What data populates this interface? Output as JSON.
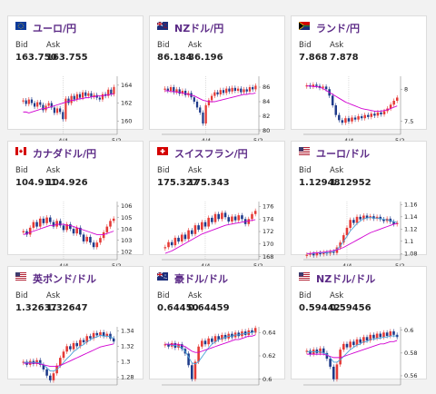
{
  "colors": {
    "title": "#5b2a86",
    "up": "#e53935",
    "down": "#1e3a8a",
    "ma1": "#d100d1",
    "ma2": "#4aa3d9"
  },
  "cards": [
    {
      "title": "ユーロ/円",
      "flag": "eu-flag-icon",
      "bid_label": "Bid",
      "ask_label": "Ask",
      "bid": "163.750",
      "ask": "163.755",
      "chart_data": {
        "type": "candlestick",
        "y_ticks": [
          "164",
          "162",
          "160"
        ],
        "x_ticks": [
          "4/4",
          "5/2"
        ],
        "ylim": [
          158.5,
          165
        ],
        "closes": [
          162.3,
          161.9,
          162.4,
          162.0,
          161.6,
          162.1,
          161.8,
          161.2,
          161.7,
          162.0,
          161.5,
          160.9,
          161.4,
          161.0,
          160.2,
          162.5,
          162.0,
          162.8,
          162.4,
          163.0,
          162.6,
          163.2,
          162.8,
          163.1,
          162.7,
          162.9,
          162.6,
          162.4,
          163.0,
          162.8,
          163.5,
          163.0,
          163.8
        ],
        "ma1": [
          161.0,
          161.0,
          160.9,
          161.0,
          161.1,
          161.2,
          161.3,
          161.4,
          161.4,
          161.5,
          161.6,
          161.7,
          161.8,
          161.9,
          162.0,
          162.1,
          162.2,
          162.3,
          162.3,
          162.4,
          162.5,
          162.5,
          162.6,
          162.6,
          162.7,
          162.7,
          162.8,
          162.8,
          162.8,
          162.9,
          162.9,
          163.0,
          163.0
        ],
        "ma2": []
      }
    },
    {
      "title": "NZドル/円",
      "flag": "nz-flag-icon",
      "bid_label": "Bid",
      "ask_label": "Ask",
      "bid": "86.184",
      "ask": "86.196",
      "chart_data": {
        "type": "candlestick",
        "y_ticks": [
          "86",
          "84",
          "82",
          "80"
        ],
        "x_ticks": [
          "4/4",
          "5/2"
        ],
        "ylim": [
          79.5,
          87.5
        ],
        "closes": [
          85.8,
          85.5,
          86.0,
          85.3,
          85.7,
          85.1,
          85.5,
          84.9,
          85.2,
          84.6,
          84.0,
          83.2,
          82.5,
          81.0,
          83.5,
          84.2,
          84.8,
          85.3,
          85.0,
          85.6,
          85.2,
          85.8,
          85.4,
          85.9,
          85.5,
          85.8,
          85.3,
          85.7,
          85.4,
          86.0,
          85.7,
          86.2
        ],
        "ma1": [
          85.5,
          85.5,
          85.4,
          85.4,
          85.3,
          85.3,
          85.2,
          85.1,
          85.0,
          84.9,
          84.8,
          84.6,
          84.4,
          84.2,
          84.1,
          84.0,
          84.0,
          84.0,
          84.1,
          84.2,
          84.3,
          84.4,
          84.5,
          84.6,
          84.7,
          84.8,
          84.9,
          85.0,
          85.0,
          85.1,
          85.1,
          85.2
        ],
        "ma2": []
      }
    },
    {
      "title": "ランド/円",
      "flag": "za-flag-icon",
      "bid_label": "Bid",
      "ask_label": "Ask",
      "bid": "7.868",
      "ask": "7.878",
      "chart_data": {
        "type": "candlestick",
        "y_ticks": [
          "8",
          "7.5"
        ],
        "x_ticks": [
          "4/4",
          "5/2"
        ],
        "ylim": [
          7.3,
          8.2
        ],
        "closes": [
          8.06,
          8.04,
          8.07,
          8.05,
          8.02,
          8.04,
          8.0,
          7.9,
          7.75,
          7.6,
          7.52,
          7.48,
          7.55,
          7.5,
          7.56,
          7.53,
          7.58,
          7.55,
          7.6,
          7.57,
          7.62,
          7.59,
          7.64,
          7.61,
          7.66,
          7.7,
          7.76,
          7.82,
          7.87
        ],
        "ma1": [
          8.05,
          8.05,
          8.04,
          8.04,
          8.03,
          8.01,
          7.98,
          7.95,
          7.92,
          7.89,
          7.86,
          7.83,
          7.8,
          7.78,
          7.76,
          7.74,
          7.72,
          7.7,
          7.69,
          7.68,
          7.67,
          7.66,
          7.66,
          7.66,
          7.67,
          7.68,
          7.7,
          7.72,
          7.74
        ],
        "ma2": []
      }
    },
    {
      "title": "カナダドル/円",
      "flag": "ca-flag-icon",
      "bid_label": "Bid",
      "ask_label": "Ask",
      "bid": "104.911",
      "ask": "104.926",
      "chart_data": {
        "type": "candlestick",
        "y_ticks": [
          "106",
          "105",
          "104",
          "103",
          "102"
        ],
        "x_ticks": [
          "4/4",
          "5/2"
        ],
        "ylim": [
          101.3,
          106.4
        ],
        "closes": [
          103.8,
          103.5,
          104.1,
          104.6,
          104.2,
          104.9,
          104.5,
          105.0,
          104.6,
          104.2,
          104.7,
          104.3,
          103.9,
          104.4,
          104.0,
          103.6,
          104.1,
          103.5,
          102.9,
          103.3,
          102.8,
          102.4,
          102.8,
          103.2,
          103.7,
          104.2,
          104.7,
          104.9
        ],
        "ma1": [
          103.5,
          103.6,
          103.7,
          103.8,
          103.9,
          104.0,
          104.1,
          104.2,
          104.3,
          104.3,
          104.4,
          104.4,
          104.4,
          104.3,
          104.3,
          104.2,
          104.1,
          104.0,
          103.9,
          103.8,
          103.7,
          103.6,
          103.5,
          103.5,
          103.5,
          103.6,
          103.7,
          103.8
        ],
        "ma2": []
      }
    },
    {
      "title": "スイスフラン/円",
      "flag": "ch-flag-icon",
      "bid_label": "Bid",
      "ask_label": "Ask",
      "bid": "175.327",
      "ask": "175.343",
      "chart_data": {
        "type": "candlestick",
        "y_ticks": [
          "176",
          "174",
          "172",
          "170",
          "168"
        ],
        "x_ticks": [
          "4/4",
          "5/2"
        ],
        "ylim": [
          167.5,
          176.8
        ],
        "closes": [
          169.5,
          170.3,
          169.8,
          171.0,
          170.4,
          171.5,
          170.8,
          172.2,
          171.6,
          173.0,
          172.3,
          173.5,
          172.8,
          174.2,
          173.5,
          174.8,
          174.0,
          175.0,
          174.3,
          173.6,
          174.4,
          173.8,
          174.6,
          174.0,
          173.2,
          174.0,
          174.8,
          175.3
        ],
        "ma1": [
          168.5,
          168.7,
          168.9,
          169.2,
          169.5,
          169.8,
          170.1,
          170.4,
          170.7,
          171.0,
          171.3,
          171.6,
          171.8,
          172.0,
          172.2,
          172.4,
          172.6,
          172.8,
          173.0,
          173.1,
          173.2,
          173.3,
          173.4,
          173.5,
          173.6,
          173.7,
          173.8,
          173.9
        ],
        "ma2": []
      }
    },
    {
      "title": "ユーロ/ドル",
      "flag": "us-flag-icon",
      "bid_label": "Bid",
      "ask_label": "Ask",
      "bid": "1.12948",
      "ask": "1.12952",
      "chart_data": {
        "type": "candlestick",
        "y_ticks": [
          "1.16",
          "1.14",
          "1.12",
          "1.1",
          "1.08"
        ],
        "x_ticks": [
          "4/4",
          "5/2"
        ],
        "ylim": [
          1.07,
          1.165
        ],
        "closes": [
          1.078,
          1.08,
          1.077,
          1.081,
          1.079,
          1.082,
          1.08,
          1.083,
          1.081,
          1.09,
          1.098,
          1.11,
          1.122,
          1.135,
          1.13,
          1.14,
          1.136,
          1.142,
          1.138,
          1.141,
          1.137,
          1.14,
          1.136,
          1.133,
          1.137,
          1.132,
          1.128,
          1.13
        ],
        "ma1": [
          1.08,
          1.08,
          1.081,
          1.081,
          1.082,
          1.082,
          1.083,
          1.084,
          1.085,
          1.086,
          1.088,
          1.09,
          1.093,
          1.096,
          1.099,
          1.102,
          1.105,
          1.108,
          1.111,
          1.114,
          1.116,
          1.118,
          1.12,
          1.122,
          1.124,
          1.126,
          1.128,
          1.129
        ],
        "ma2": [
          1.08,
          1.08,
          1.08,
          1.081,
          1.081,
          1.081,
          1.081,
          1.082,
          1.083,
          1.087,
          1.092,
          1.1,
          1.108,
          1.117,
          1.123,
          1.129,
          1.133,
          1.137,
          1.138,
          1.139,
          1.138,
          1.138,
          1.137,
          1.136,
          1.135,
          1.134,
          1.132,
          1.131
        ]
      }
    },
    {
      "title": "英ポンド/ドル",
      "flag": "us-flag-icon",
      "bid_label": "Bid",
      "ask_label": "Ask",
      "bid": "1.32637",
      "ask": "1.32647",
      "chart_data": {
        "type": "candlestick",
        "y_ticks": [
          "1.34",
          "1.32",
          "1.3",
          "1.28"
        ],
        "x_ticks": [],
        "ylim": [
          1.27,
          1.345
        ],
        "closes": [
          1.3,
          1.296,
          1.301,
          1.297,
          1.302,
          1.296,
          1.29,
          1.282,
          1.276,
          1.285,
          1.295,
          1.305,
          1.313,
          1.32,
          1.316,
          1.324,
          1.32,
          1.328,
          1.325,
          1.333,
          1.33,
          1.337,
          1.334,
          1.338,
          1.333,
          1.336,
          1.33,
          1.326
        ],
        "ma1": [
          1.298,
          1.298,
          1.298,
          1.298,
          1.298,
          1.297,
          1.296,
          1.295,
          1.294,
          1.294,
          1.294,
          1.295,
          1.297,
          1.299,
          1.301,
          1.303,
          1.305,
          1.307,
          1.309,
          1.311,
          1.313,
          1.315,
          1.317,
          1.319,
          1.32,
          1.321,
          1.322,
          1.323
        ],
        "ma2": [
          1.299,
          1.299,
          1.299,
          1.299,
          1.299,
          1.298,
          1.296,
          1.292,
          1.288,
          1.288,
          1.29,
          1.294,
          1.299,
          1.304,
          1.308,
          1.313,
          1.316,
          1.32,
          1.322,
          1.326,
          1.328,
          1.331,
          1.332,
          1.334,
          1.333,
          1.333,
          1.332,
          1.33
        ]
      }
    },
    {
      "title": "豪ドル/ドル",
      "flag": "au-flag-icon",
      "bid_label": "Bid",
      "ask_label": "Ask",
      "bid": "0.64450",
      "ask": "0.64459",
      "chart_data": {
        "type": "candlestick",
        "y_ticks": [
          "0.64",
          "0.62",
          "0.6"
        ],
        "x_ticks": [],
        "ylim": [
          0.595,
          0.645
        ],
        "closes": [
          0.63,
          0.628,
          0.631,
          0.627,
          0.63,
          0.626,
          0.622,
          0.612,
          0.6,
          0.615,
          0.628,
          0.633,
          0.63,
          0.635,
          0.632,
          0.637,
          0.634,
          0.638,
          0.635,
          0.639,
          0.636,
          0.64,
          0.637,
          0.641,
          0.638,
          0.642,
          0.64,
          0.644
        ],
        "ma1": [
          0.63,
          0.63,
          0.63,
          0.63,
          0.63,
          0.629,
          0.628,
          0.626,
          0.624,
          0.623,
          0.623,
          0.624,
          0.625,
          0.626,
          0.627,
          0.628,
          0.629,
          0.63,
          0.631,
          0.632,
          0.633,
          0.634,
          0.634,
          0.635,
          0.636,
          0.637,
          0.637,
          0.638
        ],
        "ma2": [
          0.63,
          0.63,
          0.629,
          0.629,
          0.628,
          0.627,
          0.624,
          0.619,
          0.614,
          0.613,
          0.615,
          0.619,
          0.623,
          0.627,
          0.63,
          0.632,
          0.634,
          0.635,
          0.636,
          0.637,
          0.637,
          0.638,
          0.638,
          0.639,
          0.639,
          0.64,
          0.64,
          0.641
        ]
      }
    },
    {
      "title": "NZドル/ドル",
      "flag": "us-flag-icon",
      "bid_label": "Bid",
      "ask_label": "Ask",
      "bid": "0.59442",
      "ask": "0.59456",
      "chart_data": {
        "type": "candlestick",
        "y_ticks": [
          "0.6",
          "0.58",
          "0.56"
        ],
        "x_ticks": [],
        "ylim": [
          0.552,
          0.603
        ],
        "closes": [
          0.582,
          0.579,
          0.583,
          0.58,
          0.584,
          0.58,
          0.575,
          0.568,
          0.557,
          0.57,
          0.583,
          0.588,
          0.585,
          0.59,
          0.587,
          0.592,
          0.589,
          0.594,
          0.591,
          0.596,
          0.593,
          0.597,
          0.594,
          0.598,
          0.595,
          0.599,
          0.596,
          0.594
        ],
        "ma1": [
          0.579,
          0.579,
          0.579,
          0.579,
          0.579,
          0.579,
          0.578,
          0.577,
          0.576,
          0.576,
          0.576,
          0.577,
          0.578,
          0.579,
          0.58,
          0.581,
          0.582,
          0.583,
          0.584,
          0.585,
          0.586,
          0.587,
          0.588,
          0.588,
          0.589,
          0.59,
          0.59,
          0.591
        ],
        "ma2": [
          0.581,
          0.581,
          0.581,
          0.581,
          0.581,
          0.58,
          0.579,
          0.576,
          0.572,
          0.572,
          0.574,
          0.577,
          0.58,
          0.583,
          0.585,
          0.587,
          0.588,
          0.59,
          0.59,
          0.592,
          0.592,
          0.593,
          0.593,
          0.594,
          0.594,
          0.595,
          0.595,
          0.595
        ]
      }
    }
  ]
}
